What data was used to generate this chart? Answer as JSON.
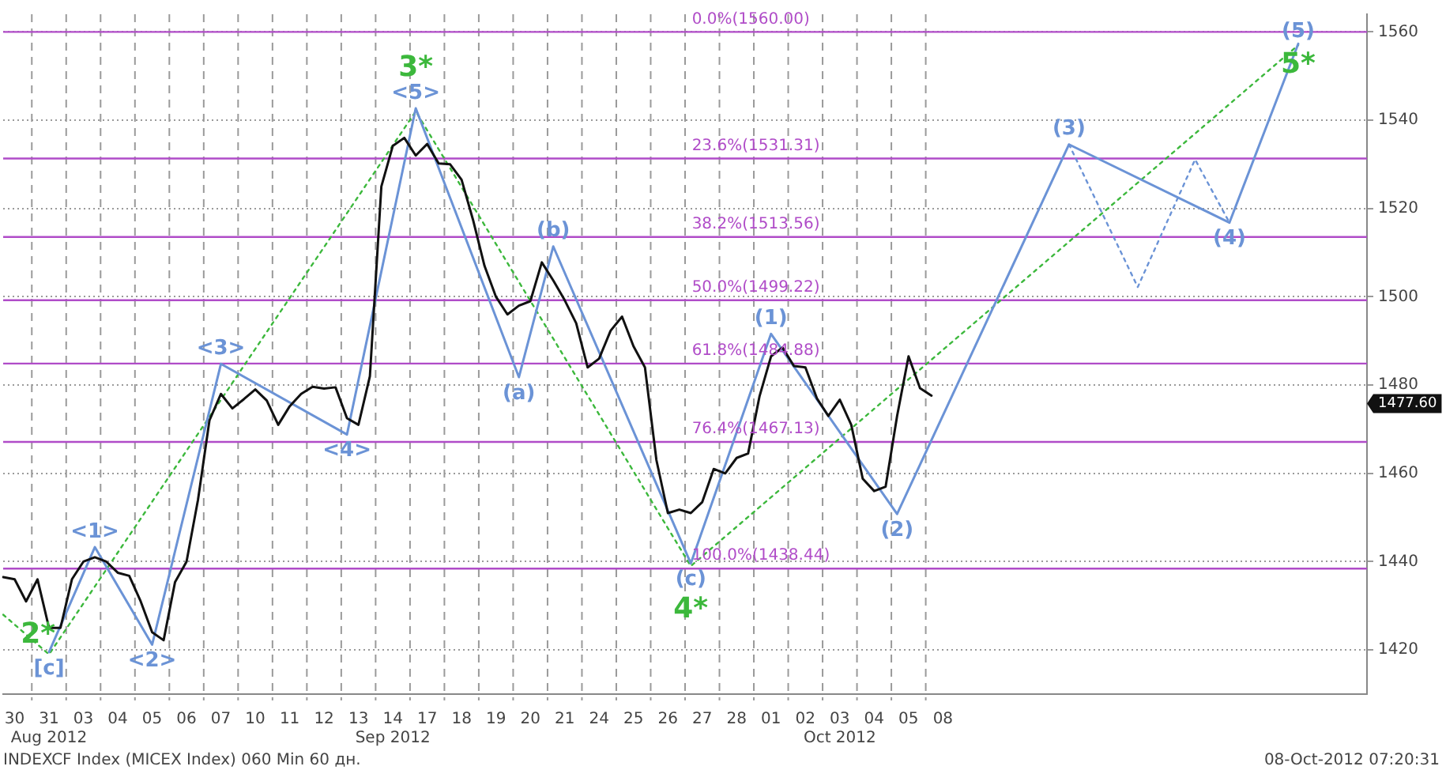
{
  "chart_data": {
    "type": "line",
    "categories": [
      null,
      "30",
      null,
      null,
      "31\nAug 2012",
      null,
      null,
      "03",
      null,
      null,
      "04",
      null,
      null,
      "05",
      null,
      null,
      "06",
      null,
      null,
      "07",
      null,
      null,
      "10",
      null,
      null,
      "11",
      null,
      null,
      "12",
      null,
      null,
      "13",
      null,
      null,
      "14\nSep 2012",
      null,
      null,
      "17",
      null,
      null,
      "18",
      null,
      null,
      "19",
      null,
      null,
      "20",
      null,
      null,
      "21",
      null,
      null,
      "24",
      null,
      null,
      "25",
      null,
      null,
      "26",
      null,
      null,
      "27",
      null,
      null,
      "28",
      null,
      null,
      "01",
      null,
      null,
      "02",
      null,
      null,
      "03\nOct 2012",
      null,
      null,
      "04",
      null,
      null,
      "05",
      null,
      null,
      "08",
      null,
      null,
      null,
      null,
      null,
      null,
      null,
      null,
      null,
      null,
      null,
      null,
      null,
      null,
      null,
      null,
      null,
      null,
      null,
      null,
      null,
      null,
      null,
      null,
      null,
      null,
      null,
      null,
      null,
      null,
      null,
      null,
      null,
      null,
      null,
      null,
      null
    ],
    "ylim": [
      1410,
      1564
    ],
    "yticks": [
      1420,
      1440,
      1460,
      1480,
      1500,
      1520,
      1540,
      1560
    ],
    "grid": true,
    "legend": false,
    "marker": "none",
    "line_style": "solid",
    "series": [
      {
        "color": "#111111",
        "values": [
          1436.5,
          1436,
          1431,
          1436,
          1425,
          1425,
          1436,
          1440,
          1441,
          1440,
          1437.5,
          1436.8,
          1431,
          1424,
          1422.2,
          1435.4,
          1440,
          1454,
          1472,
          1478,
          1474.7,
          1476.8,
          1479,
          1476.5,
          1471,
          1475.2,
          1478,
          1479.6,
          1479.2,
          1479.5,
          1472.5,
          1471,
          1482,
          1525,
          1534.2,
          1536,
          1532,
          1534.6,
          1530.2,
          1530,
          1526.5,
          1517.4,
          1507,
          1500,
          1496,
          1498,
          1499,
          1507.8,
          1503.7,
          1499.2,
          1494,
          1484,
          1486,
          1492.3,
          1495.5,
          1488.8,
          1484,
          1463,
          1451,
          1451.8,
          1451,
          1453.5,
          1461,
          1460,
          1463.5,
          1464.5,
          1477.5,
          1486.5,
          1488.5,
          1484.3,
          1484,
          1477,
          1473,
          1476.7,
          1471,
          1458.8,
          1456,
          1457,
          1473,
          1486.5,
          1479.3,
          1477.6,
          null,
          null,
          null,
          null,
          null,
          null,
          null,
          null,
          null,
          null,
          null,
          null,
          null,
          null,
          null,
          null,
          null,
          null,
          null,
          null,
          null,
          null,
          null,
          null,
          null,
          null,
          null,
          null,
          null,
          null,
          null,
          null,
          null,
          null,
          null,
          null,
          null,
          null
        ]
      },
      {
        "color": "#6b93d6",
        "values": [
          null,
          null,
          null,
          null,
          1419.5,
          null,
          null,
          null,
          1443.3,
          null,
          null,
          null,
          null,
          1421.2,
          null,
          null,
          null,
          null,
          null,
          1484.8,
          null,
          null,
          null,
          null,
          null,
          null,
          null,
          null,
          null,
          null,
          1468.8,
          null,
          null,
          null,
          null,
          null,
          1542.7,
          null,
          null,
          null,
          null,
          null,
          null,
          null,
          null,
          1481.8,
          null,
          null,
          1511.4,
          null,
          null,
          null,
          null,
          null,
          null,
          null,
          null,
          null,
          null,
          null,
          1439.6,
          null,
          null,
          null,
          null,
          null,
          null,
          1491.6,
          null,
          null,
          null,
          null,
          null,
          null,
          null,
          null,
          null,
          null,
          1450.8,
          null,
          null,
          null,
          null,
          null,
          null,
          null,
          null,
          null,
          null,
          null,
          null,
          null,
          null,
          1534.5,
          null,
          null,
          null,
          null,
          null,
          null,
          null,
          null,
          null,
          null,
          null,
          null,
          null,
          1516.8,
          null,
          null,
          null,
          null,
          null,
          1557.3,
          null,
          null,
          null,
          null,
          null,
          null
        ]
      },
      {
        "line_style": "dotted",
        "color": "#6b93d6",
        "values": [
          null,
          null,
          null,
          null,
          null,
          null,
          null,
          null,
          null,
          null,
          null,
          null,
          null,
          null,
          null,
          null,
          null,
          null,
          null,
          null,
          null,
          null,
          null,
          null,
          null,
          null,
          null,
          null,
          null,
          null,
          null,
          null,
          null,
          null,
          null,
          null,
          null,
          null,
          null,
          null,
          null,
          null,
          null,
          null,
          null,
          null,
          null,
          null,
          null,
          null,
          null,
          null,
          null,
          null,
          null,
          null,
          null,
          null,
          null,
          null,
          null,
          null,
          null,
          null,
          null,
          null,
          null,
          null,
          null,
          null,
          null,
          null,
          null,
          null,
          null,
          null,
          null,
          null,
          null,
          null,
          null,
          null,
          null,
          null,
          null,
          null,
          null,
          null,
          null,
          null,
          null,
          null,
          null,
          1534.5,
          null,
          null,
          null,
          null,
          null,
          1502.2,
          null,
          null,
          null,
          null,
          1531.1,
          null,
          null,
          1516.8,
          null,
          null,
          null,
          null,
          null,
          null,
          null,
          null,
          null,
          null,
          null,
          null
        ]
      },
      {
        "line_style": "dotted",
        "color": "#3cb83c",
        "values": [
          1428,
          null,
          null,
          null,
          1419,
          null,
          null,
          null,
          null,
          null,
          null,
          null,
          null,
          null,
          null,
          null,
          null,
          null,
          null,
          null,
          null,
          null,
          null,
          null,
          null,
          null,
          null,
          null,
          null,
          null,
          null,
          null,
          null,
          null,
          null,
          null,
          1542,
          null,
          null,
          null,
          null,
          null,
          null,
          null,
          null,
          null,
          null,
          null,
          null,
          null,
          null,
          null,
          null,
          null,
          null,
          null,
          null,
          null,
          null,
          null,
          1439,
          null,
          null,
          null,
          null,
          null,
          null,
          null,
          null,
          null,
          null,
          null,
          null,
          null,
          null,
          null,
          null,
          null,
          null,
          null,
          null,
          null,
          null,
          null,
          null,
          null,
          null,
          null,
          null,
          null,
          null,
          null,
          null,
          null,
          null,
          null,
          null,
          null,
          null,
          null,
          null,
          null,
          null,
          null,
          null,
          null,
          null,
          null,
          null,
          null,
          null,
          null,
          null,
          1557,
          null,
          null,
          null,
          null,
          null,
          null
        ]
      }
    ],
    "ref_lines": [
      {
        "axis": "y",
        "value": 1560,
        "label": "0.0%(1560.00)",
        "color": "#b04cc8"
      },
      {
        "axis": "y",
        "value": 1531.31,
        "label": "23.6%(1531.31)",
        "color": "#b04cc8"
      },
      {
        "axis": "y",
        "value": 1513.56,
        "label": "38.2%(1513.56)",
        "color": "#b04cc8"
      },
      {
        "axis": "y",
        "value": 1499.22,
        "label": "50.0%(1499.22)",
        "color": "#b04cc8"
      },
      {
        "axis": "y",
        "value": 1484.88,
        "label": "61.8%(1484.88)",
        "color": "#b04cc8"
      },
      {
        "axis": "y",
        "value": 1467.13,
        "label": "76.4%(1467.13)",
        "color": "#b04cc8"
      },
      {
        "axis": "y",
        "value": 1438.44,
        "label": "100.0%(1438.44)",
        "color": "#b04cc8"
      }
    ],
    "annotations": [
      {
        "text": "[c]",
        "y": 1419.5
      },
      {
        "text": "2*",
        "y": 1419
      },
      {
        "text": "<1>",
        "y": 1443.3
      },
      {
        "text": "<2>",
        "y": 1421.2
      },
      {
        "text": "<3>",
        "y": 1484.8
      },
      {
        "text": "<4>",
        "y": 1468.8
      },
      {
        "text": "<5>",
        "y": 1542.7
      },
      {
        "text": "3*",
        "y": 1542
      },
      {
        "text": "(a)",
        "y": 1481.8
      },
      {
        "text": "(b)",
        "y": 1511.4
      },
      {
        "text": "(c)",
        "y": 1439.6
      },
      {
        "text": "4*",
        "y": 1439
      },
      {
        "text": "(1)",
        "y": 1491.6
      },
      {
        "text": "(2)",
        "y": 1450.8
      },
      {
        "text": "(3)",
        "y": 1534.5
      },
      {
        "text": "(4)",
        "y": 1516.8
      },
      {
        "text": "(5)",
        "y": 1557.3
      },
      {
        "text": "5*",
        "y": 1557
      },
      "1477.60",
      "INDEXCF Index (MICEX Index) 060 Min 60 дн.",
      "08-Oct-2012 07:20:31"
    ]
  }
}
